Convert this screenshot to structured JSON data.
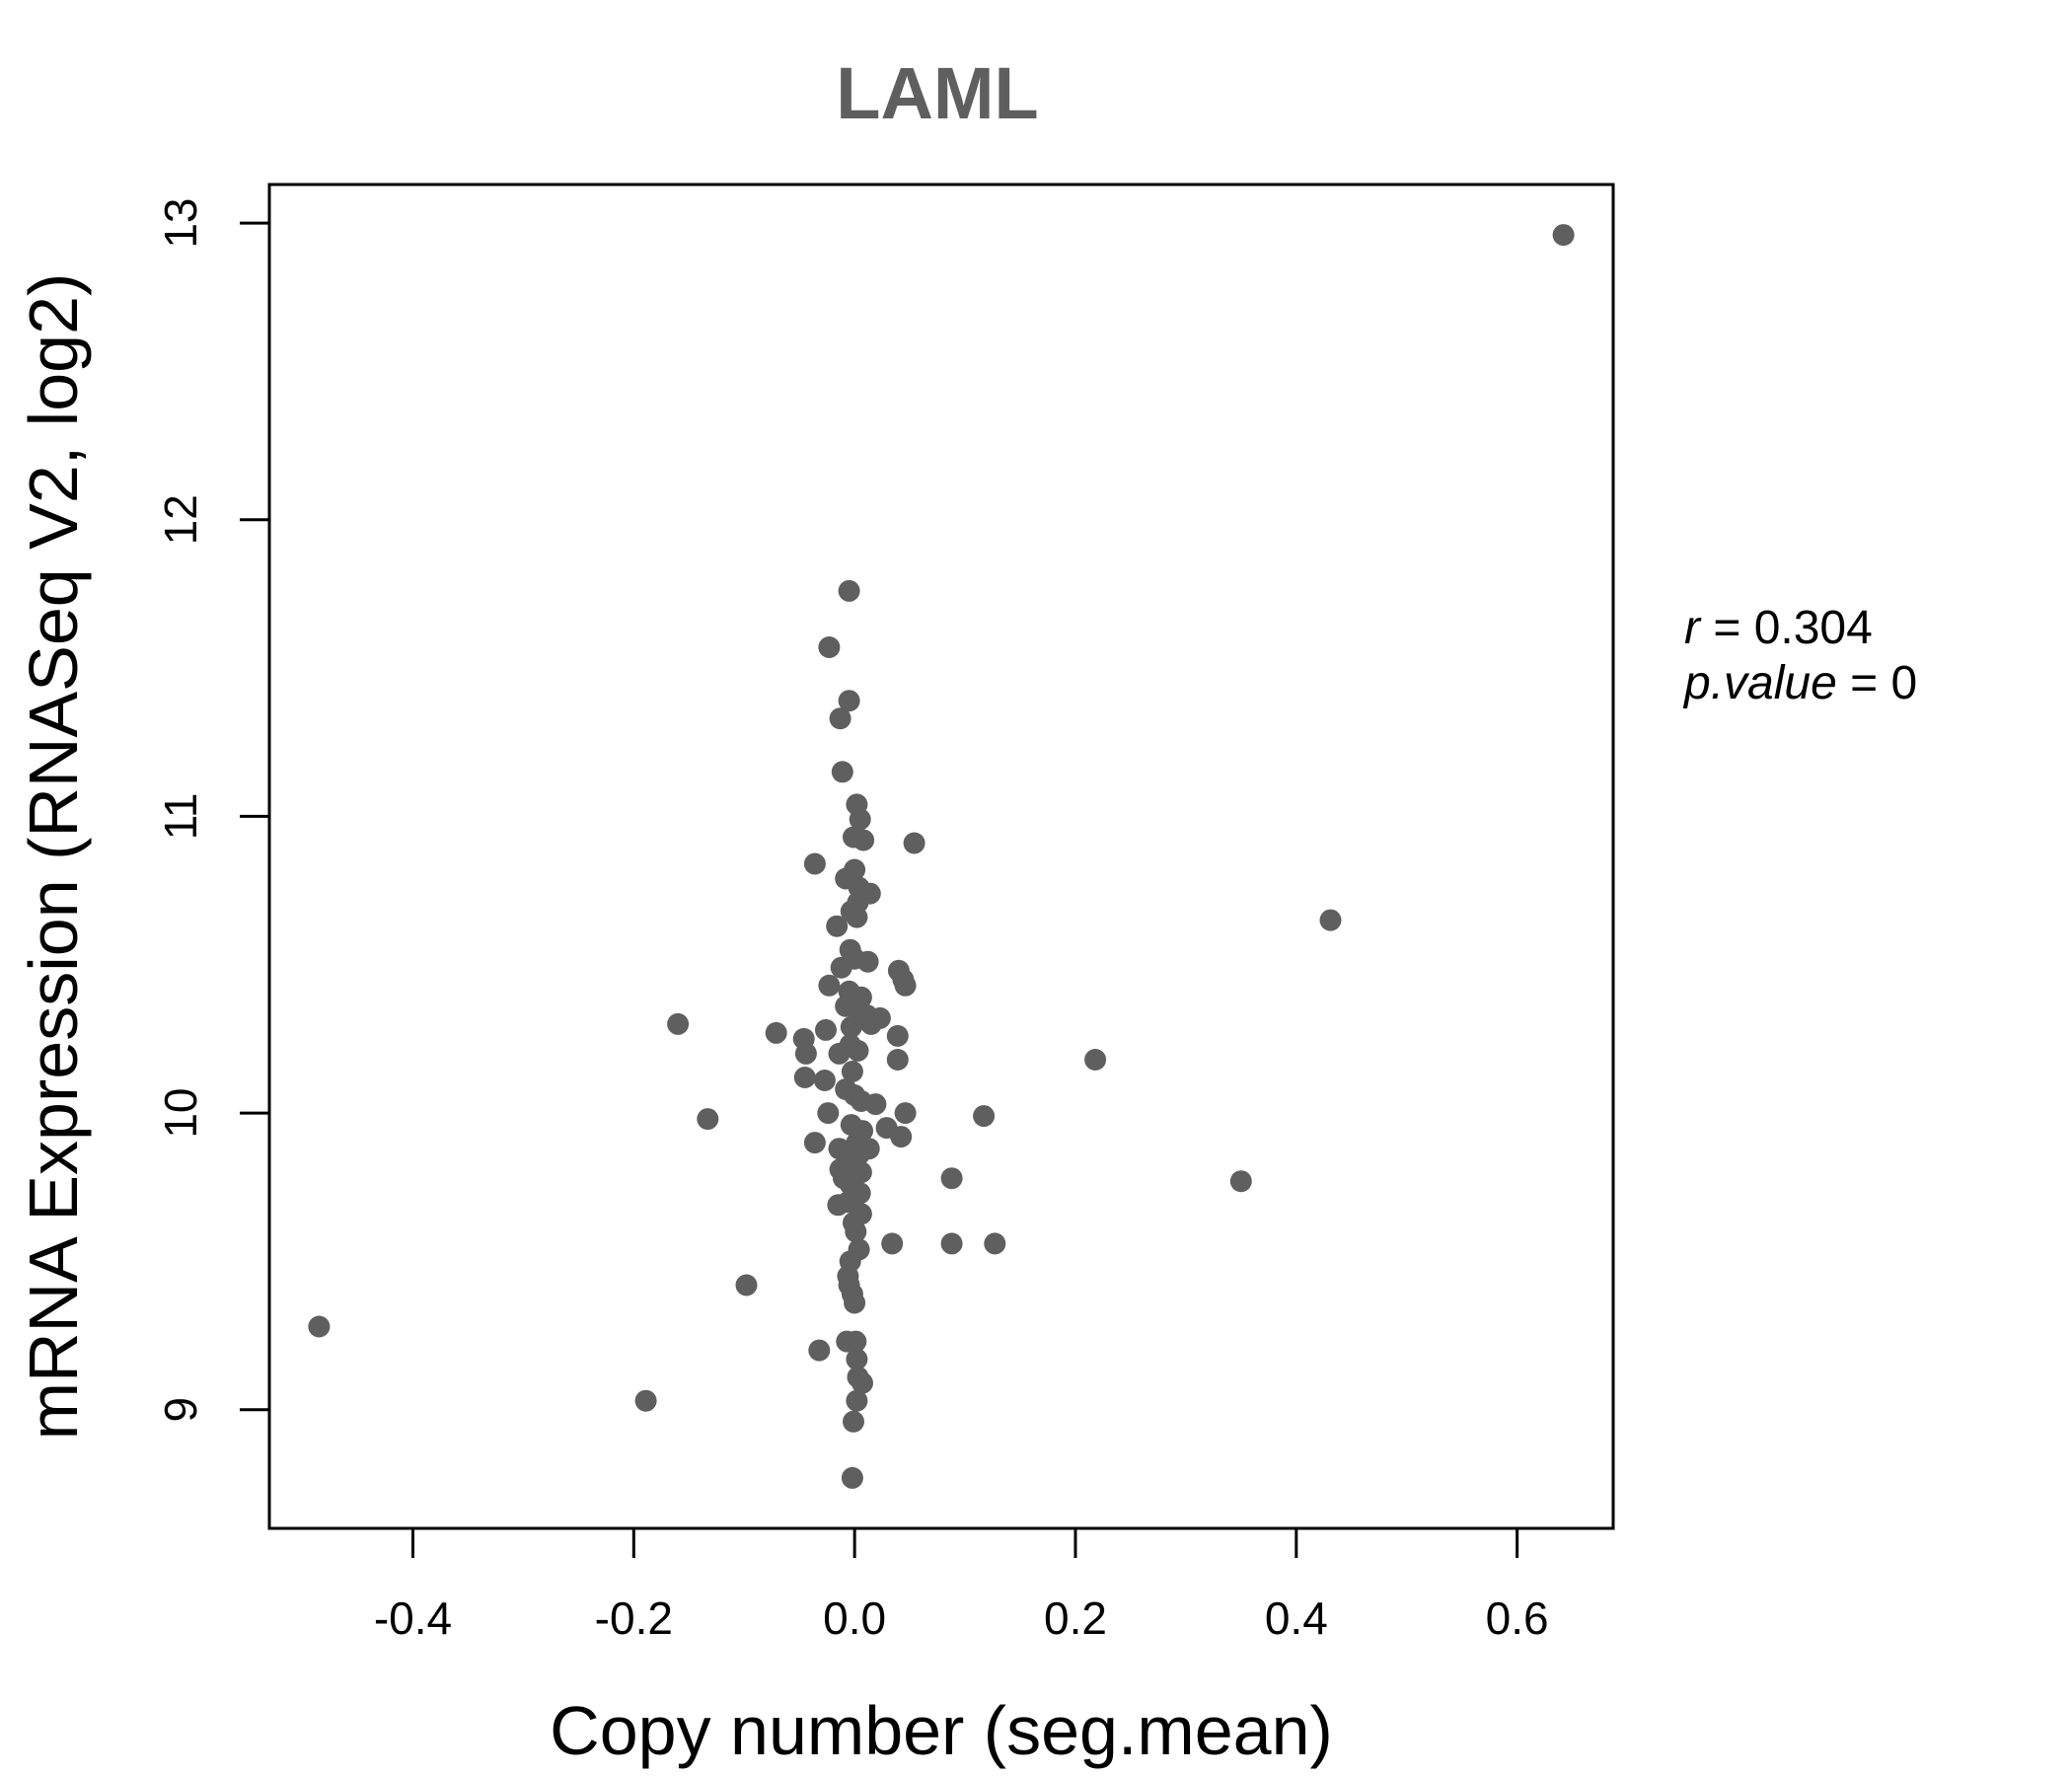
{
  "chart_data": {
    "type": "scatter",
    "title": "LAML",
    "xlabel": "Copy number (seg.mean)",
    "ylabel": "mRNA Expression (RNASeq V2, log2)",
    "xlim": [
      -0.53,
      0.687
    ],
    "ylim": [
      8.6,
      13.13
    ],
    "x_ticks": [
      -0.4,
      -0.2,
      0.0,
      0.2,
      0.4,
      0.6
    ],
    "x_tick_labels": [
      "-0.4",
      "-0.2",
      "0.0",
      "0.2",
      "0.4",
      "0.6"
    ],
    "y_ticks": [
      9,
      10,
      11,
      12,
      13
    ],
    "y_tick_labels": [
      "9",
      "10",
      "11",
      "12",
      "13"
    ],
    "grid": false,
    "point_color": "#5f5f5f",
    "stats": {
      "r_label": "r",
      "r_value": "0.304",
      "p_label": "p.value",
      "p_value": "0"
    },
    "points": [
      [
        0.642,
        12.96
      ],
      [
        -0.005,
        11.76
      ],
      [
        -0.023,
        11.57
      ],
      [
        -0.005,
        11.39
      ],
      [
        -0.013,
        11.33
      ],
      [
        -0.011,
        11.15
      ],
      [
        0.002,
        11.04
      ],
      [
        0.005,
        10.99
      ],
      [
        0.054,
        10.91
      ],
      [
        0.008,
        10.92
      ],
      [
        -0.001,
        10.93
      ],
      [
        -0.036,
        10.84
      ],
      [
        -0.008,
        10.79
      ],
      [
        0.0,
        10.82
      ],
      [
        0.004,
        10.76
      ],
      [
        0.014,
        10.74
      ],
      [
        0.003,
        10.71
      ],
      [
        -0.003,
        10.68
      ],
      [
        0.002,
        10.66
      ],
      [
        -0.016,
        10.63
      ],
      [
        0.431,
        10.65
      ],
      [
        -0.004,
        10.55
      ],
      [
        0.0,
        10.52
      ],
      [
        0.012,
        10.51
      ],
      [
        -0.012,
        10.49
      ],
      [
        0.04,
        10.48
      ],
      [
        0.044,
        10.45
      ],
      [
        0.046,
        10.43
      ],
      [
        -0.023,
        10.43
      ],
      [
        -0.005,
        10.41
      ],
      [
        0.006,
        10.39
      ],
      [
        -0.008,
        10.36
      ],
      [
        0.005,
        10.34
      ],
      [
        0.011,
        10.33
      ],
      [
        0.023,
        10.32
      ],
      [
        0.015,
        10.3
      ],
      [
        -0.003,
        10.29
      ],
      [
        -0.026,
        10.28
      ],
      [
        -0.16,
        10.3
      ],
      [
        -0.071,
        10.27
      ],
      [
        -0.046,
        10.25
      ],
      [
        0.039,
        10.26
      ],
      [
        -0.004,
        10.23
      ],
      [
        0.003,
        10.21
      ],
      [
        -0.014,
        10.2
      ],
      [
        -0.044,
        10.2
      ],
      [
        0.039,
        10.18
      ],
      [
        0.218,
        10.18
      ],
      [
        -0.002,
        10.14
      ],
      [
        -0.045,
        10.12
      ],
      [
        -0.027,
        10.11
      ],
      [
        -0.008,
        10.08
      ],
      [
        0.0,
        10.06
      ],
      [
        0.006,
        10.04
      ],
      [
        0.019,
        10.03
      ],
      [
        -0.024,
        10.0
      ],
      [
        0.046,
        10.0
      ],
      [
        0.117,
        9.99
      ],
      [
        -0.133,
        9.98
      ],
      [
        0.029,
        9.95
      ],
      [
        -0.003,
        9.96
      ],
      [
        0.007,
        9.94
      ],
      [
        0.042,
        9.92
      ],
      [
        -0.036,
        9.9
      ],
      [
        0.002,
        9.9
      ],
      [
        -0.014,
        9.88
      ],
      [
        0.013,
        9.88
      ],
      [
        0.004,
        9.86
      ],
      [
        -0.006,
        9.84
      ],
      [
        0.001,
        9.82
      ],
      [
        -0.013,
        9.81
      ],
      [
        0.006,
        9.8
      ],
      [
        -0.01,
        9.78
      ],
      [
        0.088,
        9.78
      ],
      [
        0.35,
        9.77
      ],
      [
        -0.004,
        9.76
      ],
      [
        0.005,
        9.73
      ],
      [
        -0.006,
        9.7
      ],
      [
        -0.015,
        9.69
      ],
      [
        0.006,
        9.66
      ],
      [
        -0.001,
        9.63
      ],
      [
        0.001,
        9.6
      ],
      [
        0.034,
        9.56
      ],
      [
        0.088,
        9.56
      ],
      [
        0.127,
        9.56
      ],
      [
        0.004,
        9.54
      ],
      [
        -0.004,
        9.5
      ],
      [
        -0.006,
        9.45
      ],
      [
        -0.005,
        9.42
      ],
      [
        -0.098,
        9.42
      ],
      [
        -0.002,
        9.39
      ],
      [
        0.0,
        9.36
      ],
      [
        -0.485,
        9.28
      ],
      [
        -0.007,
        9.23
      ],
      [
        0.001,
        9.23
      ],
      [
        -0.032,
        9.2
      ],
      [
        0.002,
        9.17
      ],
      [
        0.003,
        9.11
      ],
      [
        0.007,
        9.09
      ],
      [
        -0.189,
        9.03
      ],
      [
        0.002,
        9.03
      ],
      [
        -0.001,
        8.96
      ],
      [
        -0.002,
        8.77
      ]
    ]
  }
}
